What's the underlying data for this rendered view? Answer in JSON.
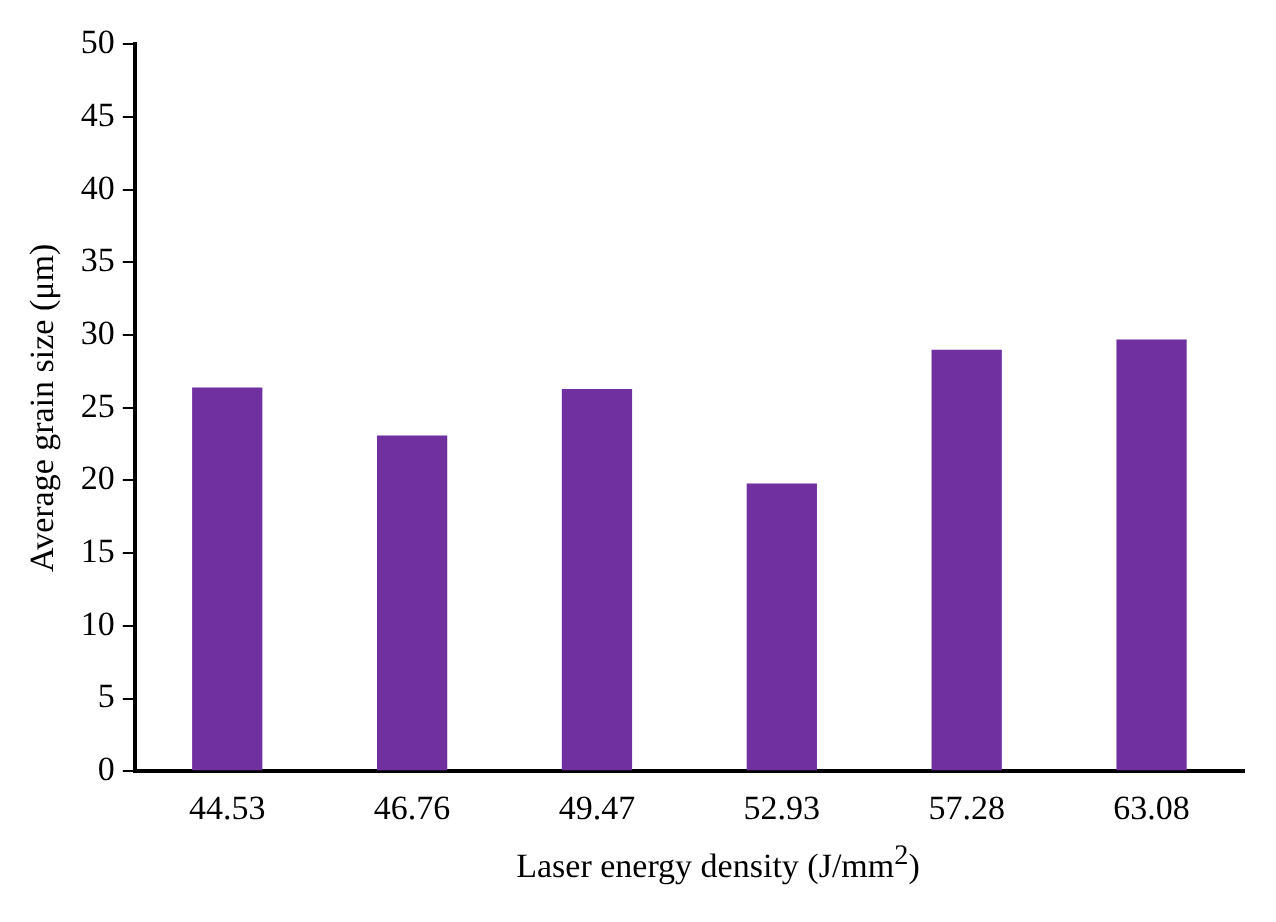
{
  "chart_data": {
    "type": "bar",
    "xlabel": "Laser energy density (J/mm$^{2}$)",
    "ylabel": "Average grain size (μm)",
    "categories": [
      "44.53",
      "46.76",
      "49.47",
      "52.93",
      "57.28",
      "63.08"
    ],
    "values": [
      26.4,
      23.1,
      26.3,
      19.8,
      29.0,
      29.7
    ],
    "color": "#7030a0",
    "ylim": [
      0,
      50
    ],
    "yticks": [
      0,
      5,
      10,
      15,
      20,
      25,
      30,
      35,
      40,
      45,
      50
    ],
    "grid": false,
    "legend": false
  }
}
